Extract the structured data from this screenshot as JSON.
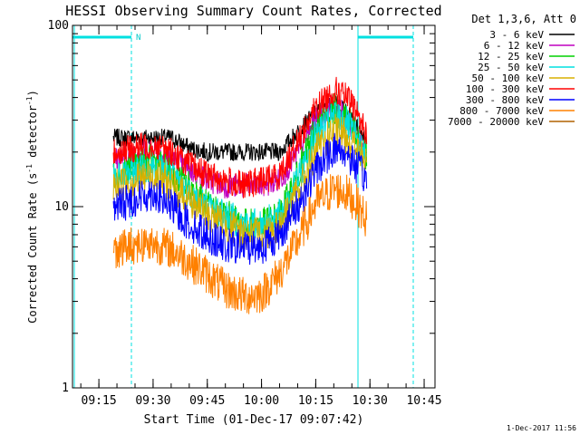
{
  "chart_data": {
    "type": "line",
    "title": "HESSI Observing Summary Count Rates, Corrected",
    "xlabel": "Start Time (01-Dec-17 09:07:42)",
    "ylabel_main": "Corrected Count Rate (s",
    "ylabel_exp": "-1",
    "ylabel_tail": " detector",
    "ylabel_close": ")",
    "yscale": "log",
    "ylim": [
      1,
      100
    ],
    "y_ticks": [
      {
        "v": 1,
        "label": "1"
      },
      {
        "v": 10,
        "label": "10"
      },
      {
        "v": 100,
        "label": "100"
      }
    ],
    "xlim": [
      "09:07:42",
      "10:48:00"
    ],
    "x_ticks": [
      "09:15",
      "09:30",
      "09:45",
      "10:00",
      "10:15",
      "10:30",
      "10:45"
    ],
    "grid": false,
    "legend_position": "right",
    "legend_title": "Det 1,3,6, Att 0",
    "series": [
      {
        "name": "3 - 6 keV",
        "color": "#000000",
        "x": [
          "09:19",
          "09:25",
          "09:30",
          "09:35",
          "09:40",
          "09:45",
          "09:50",
          "09:55",
          "10:00",
          "10:05",
          "10:10",
          "10:15",
          "10:20",
          "10:23",
          "10:26",
          "10:29"
        ],
        "y": [
          24,
          24,
          24,
          24,
          21,
          20,
          20,
          20,
          20,
          20,
          26,
          33,
          37,
          34,
          28,
          24
        ]
      },
      {
        "name": "6 - 12 keV",
        "color": "#c000c0",
        "x": [
          "09:19",
          "09:25",
          "09:30",
          "09:35",
          "09:40",
          "09:45",
          "09:50",
          "09:55",
          "10:00",
          "10:05",
          "10:10",
          "10:15",
          "10:20",
          "10:23",
          "10:26",
          "10:29"
        ],
        "y": [
          18,
          20,
          21,
          18,
          16,
          14,
          13,
          13,
          13,
          14,
          20,
          30,
          36,
          32,
          26,
          20
        ]
      },
      {
        "name": "12 - 25 keV",
        "color": "#00d000",
        "x": [
          "09:19",
          "09:25",
          "09:30",
          "09:35",
          "09:40",
          "09:45",
          "09:50",
          "09:55",
          "10:00",
          "10:05",
          "10:10",
          "10:15",
          "10:20",
          "10:23",
          "10:26",
          "10:29"
        ],
        "y": [
          15,
          17,
          18,
          15,
          13,
          10,
          9,
          8,
          8,
          9,
          15,
          28,
          35,
          33,
          26,
          19
        ]
      },
      {
        "name": "25 - 50 keV",
        "color": "#00e0e0",
        "x": [
          "09:19",
          "09:25",
          "09:30",
          "09:35",
          "09:40",
          "09:45",
          "09:50",
          "09:55",
          "10:00",
          "10:05",
          "10:10",
          "10:15",
          "10:20",
          "10:23",
          "10:26",
          "10:29"
        ],
        "y": [
          14,
          16,
          17,
          15,
          12,
          10,
          9,
          8,
          8,
          9,
          14,
          25,
          32,
          30,
          24,
          18
        ]
      },
      {
        "name": "50 - 100 keV",
        "color": "#d8b000",
        "x": [
          "09:19",
          "09:25",
          "09:30",
          "09:35",
          "09:40",
          "09:45",
          "09:50",
          "09:55",
          "10:00",
          "10:05",
          "10:10",
          "10:15",
          "10:20",
          "10:23",
          "10:26",
          "10:29"
        ],
        "y": [
          13,
          14,
          15,
          13,
          11,
          9,
          8,
          7,
          7,
          8,
          12,
          20,
          26,
          25,
          21,
          17
        ]
      },
      {
        "name": "100 - 300 keV",
        "color": "#ff0000",
        "x": [
          "09:19",
          "09:25",
          "09:30",
          "09:35",
          "09:40",
          "09:45",
          "09:50",
          "09:55",
          "10:00",
          "10:05",
          "10:10",
          "10:15",
          "10:20",
          "10:23",
          "10:26",
          "10:29"
        ],
        "y": [
          20,
          21,
          22,
          20,
          17,
          15,
          14,
          13,
          14,
          15,
          23,
          35,
          44,
          41,
          34,
          25
        ]
      },
      {
        "name": "300 - 800 keV",
        "color": "#0000ff",
        "x": [
          "09:19",
          "09:25",
          "09:30",
          "09:35",
          "09:40",
          "09:45",
          "09:50",
          "09:55",
          "10:00",
          "10:05",
          "10:10",
          "10:15",
          "10:20",
          "10:23",
          "10:26",
          "10:29"
        ],
        "y": [
          10,
          11,
          12,
          10,
          8,
          7,
          6,
          6,
          6,
          7,
          10,
          16,
          21,
          20,
          17,
          14
        ]
      },
      {
        "name": "800 - 7000 keV",
        "color": "#ff8000",
        "x": [
          "09:19",
          "09:25",
          "09:30",
          "09:35",
          "09:40",
          "09:45",
          "09:50",
          "09:55",
          "10:00",
          "10:05",
          "10:10",
          "10:15",
          "10:20",
          "10:23",
          "10:26",
          "10:29"
        ],
        "y": [
          5.8,
          6.2,
          6.3,
          5.8,
          5,
          4.2,
          3.5,
          3.2,
          3.3,
          4.3,
          6.5,
          10.5,
          12.5,
          12,
          10.5,
          8.5
        ]
      },
      {
        "name": "7000 - 20000 keV",
        "color": "#b06000",
        "x": [],
        "y": []
      }
    ],
    "annotations": [
      {
        "text": "N"
      }
    ]
  },
  "timestamp": "1-Dec-2017 11:56"
}
